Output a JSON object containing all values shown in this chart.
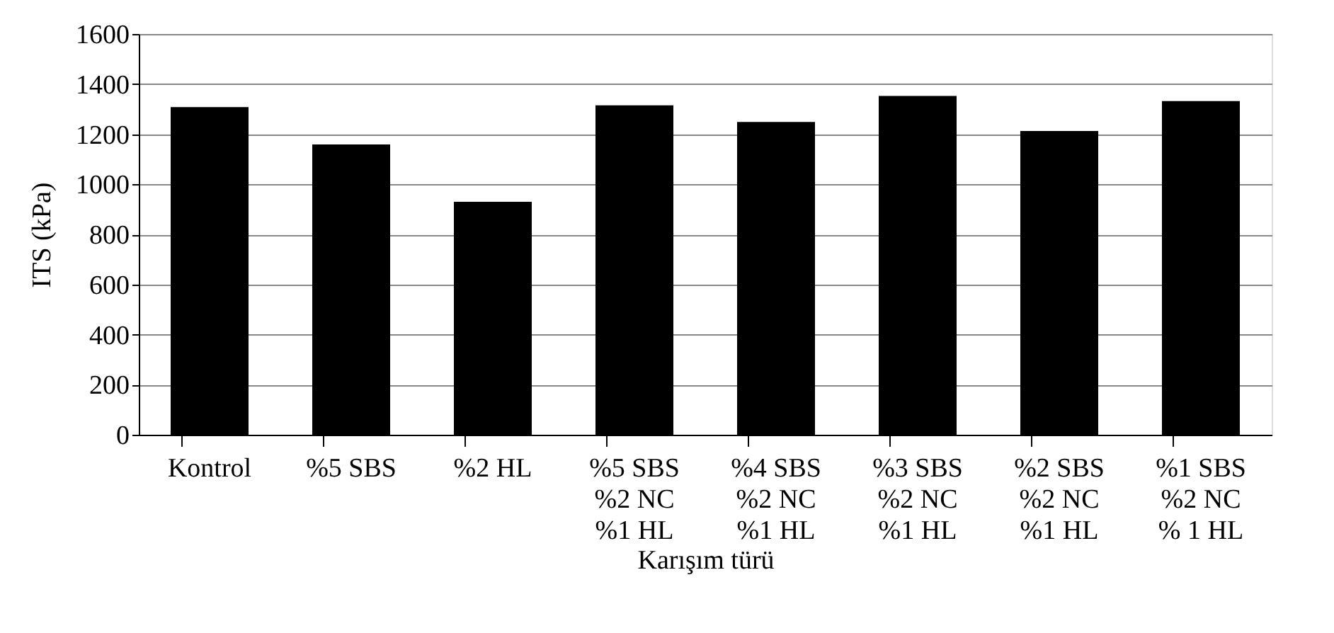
{
  "chart_data": {
    "type": "bar",
    "xlabel": "Karışım türü",
    "ylabel": "ITS (kPa)",
    "categories": [
      "Kontrol",
      "%5 SBS",
      "%2 HL",
      "%5 SBS\n%2 NC\n%1 HL",
      "%4 SBS\n%2 NC\n%1 HL",
      "%3 SBS\n%2 NC\n%1 HL",
      "%2 SBS\n%2 NC\n%1 HL",
      "%1 SBS\n%2 NC\n% 1 HL"
    ],
    "values": [
      1308,
      1159,
      930,
      1315,
      1249,
      1353,
      1213,
      1332
    ],
    "color": "#000000",
    "ylim": [
      0,
      1600
    ],
    "yticks": [
      0,
      200,
      400,
      600,
      800,
      1000,
      1200,
      1400,
      1600
    ],
    "grid": "y"
  }
}
